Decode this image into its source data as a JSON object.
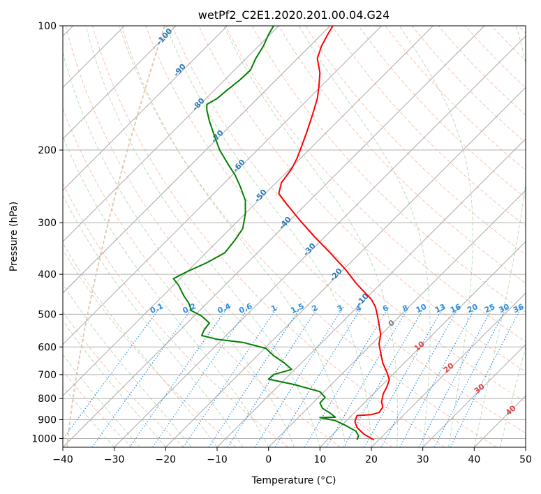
{
  "chart_data": {
    "type": "line",
    "title": "wetPf2_C2E1.2020.201.00.04.G24",
    "xlabel": "Temperature (°C)",
    "ylabel": "Pressure (hPa)",
    "xlim": [
      -40,
      50
    ],
    "ylim": [
      1050,
      100
    ],
    "y_scale": "log",
    "grid": true,
    "x_ticks": [
      -40,
      -30,
      -20,
      -10,
      0,
      10,
      20,
      30,
      40,
      50
    ],
    "y_ticks": [
      100,
      200,
      300,
      400,
      500,
      600,
      700,
      800,
      900,
      1000
    ],
    "x_tick_labels": [
      "−40",
      "−30",
      "−20",
      "−10",
      "0",
      "10",
      "20",
      "30",
      "40",
      "50"
    ],
    "y_tick_labels": [
      "100",
      "200",
      "300",
      "400",
      "500",
      "600",
      "700",
      "800",
      "900",
      "1000"
    ],
    "series": [
      {
        "color": "#ff0000",
        "points": [
          [
            20.5,
            1008
          ],
          [
            18.5,
            975
          ],
          [
            17.2,
            940
          ],
          [
            16.8,
            910
          ],
          [
            17.2,
            880
          ],
          [
            20,
            875
          ],
          [
            21.5,
            865
          ],
          [
            22.2,
            840
          ],
          [
            22,
            815
          ],
          [
            22.3,
            780
          ],
          [
            23,
            750
          ],
          [
            23.5,
            720
          ],
          [
            23,
            690
          ],
          [
            22.2,
            655
          ],
          [
            21.8,
            620
          ],
          [
            21.5,
            590
          ],
          [
            21.8,
            560
          ],
          [
            21.5,
            530
          ],
          [
            21.2,
            505
          ],
          [
            20.8,
            480
          ],
          [
            20,
            460
          ],
          [
            18.5,
            440
          ],
          [
            17,
            420
          ],
          [
            15,
            390
          ],
          [
            12,
            355
          ],
          [
            9,
            325
          ],
          [
            6,
            295
          ],
          [
            3.5,
            270
          ],
          [
            2,
            255
          ],
          [
            2.5,
            240
          ],
          [
            4.5,
            222
          ],
          [
            5.5,
            210
          ],
          [
            6.5,
            195
          ],
          [
            7.5,
            180
          ],
          [
            8.5,
            165
          ],
          [
            9.5,
            150
          ],
          [
            9.8,
            140
          ],
          [
            10,
            130
          ],
          [
            9.5,
            120
          ],
          [
            10.3,
            112
          ],
          [
            11.5,
            105
          ],
          [
            12.5,
            100
          ]
        ]
      },
      {
        "color": "#008000",
        "points": [
          [
            17.2,
            1008
          ],
          [
            17.5,
            985
          ],
          [
            17,
            960
          ],
          [
            15,
            930
          ],
          [
            13,
            905
          ],
          [
            10,
            890
          ],
          [
            13,
            888
          ],
          [
            12,
            868
          ],
          [
            10.5,
            845
          ],
          [
            10,
            820
          ],
          [
            11,
            795
          ],
          [
            10,
            770
          ],
          [
            5,
            740
          ],
          [
            0,
            718
          ],
          [
            1,
            700
          ],
          [
            4.5,
            680
          ],
          [
            3,
            655
          ],
          [
            1,
            630
          ],
          [
            -0.5,
            605
          ],
          [
            -5,
            585
          ],
          [
            -10,
            575
          ],
          [
            -13,
            563
          ],
          [
            -12.5,
            545
          ],
          [
            -11.5,
            525
          ],
          [
            -13,
            505
          ],
          [
            -15,
            490
          ],
          [
            -15.5,
            470
          ],
          [
            -16.5,
            450
          ],
          [
            -17.5,
            425
          ],
          [
            -18.5,
            410
          ],
          [
            -16,
            395
          ],
          [
            -12,
            375
          ],
          [
            -8.5,
            355
          ],
          [
            -6.5,
            330
          ],
          [
            -5,
            310
          ],
          [
            -4.5,
            285
          ],
          [
            -4.5,
            265
          ],
          [
            -5.5,
            245
          ],
          [
            -6.5,
            230
          ],
          [
            -8,
            215
          ],
          [
            -9.5,
            200
          ],
          [
            -10.5,
            185
          ],
          [
            -11.5,
            170
          ],
          [
            -12,
            160
          ],
          [
            -12,
            155
          ],
          [
            -10,
            150
          ],
          [
            -8,
            143
          ],
          [
            -5.5,
            135
          ],
          [
            -3.5,
            128
          ],
          [
            -2.5,
            120
          ],
          [
            -1,
            112
          ],
          [
            0,
            105
          ],
          [
            1,
            100
          ]
        ]
      }
    ],
    "isotherm_labels": {
      "color": "#e04444",
      "values": [
        "0",
        "10",
        "20",
        "30",
        "40"
      ]
    },
    "dry_adiabat_labels": {
      "color": "#2e78b5",
      "values": [
        "-100",
        "-90",
        "-80",
        "-70",
        "-60",
        "-50",
        "-40",
        "-30",
        "-20",
        "-10"
      ]
    },
    "mixing_ratio_labels": {
      "color": "#2f8fe0",
      "values": [
        "0.1",
        "0.2",
        "0.4",
        "0.6",
        "1",
        "1.5",
        "2",
        "3",
        "4",
        "6",
        "8",
        "10",
        "13",
        "16",
        "20",
        "25",
        "30",
        "36"
      ]
    },
    "colors": {
      "skew_isotherm": "#a9a9a9",
      "dry_adiabat": "#f7a98e",
      "moist_adiabat": "#9ccf9c",
      "mixing_ratio": "#2f8fe0",
      "isobar_grid": "#b0b0b0",
      "isotherm_zero_curve": "#d8bf9f"
    }
  }
}
